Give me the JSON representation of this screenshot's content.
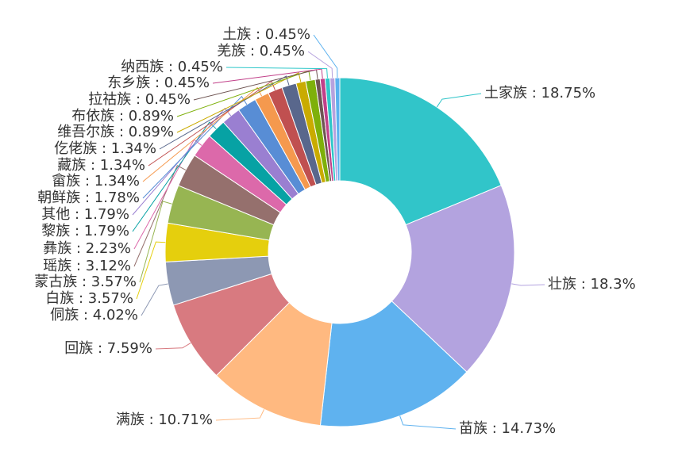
{
  "chart_data": {
    "type": "pie",
    "donut": true,
    "title": "",
    "label_separator": " : ",
    "slices": [
      {
        "name": "土家族",
        "value": 18.75,
        "color": "#31c5c9"
      },
      {
        "name": "壮族",
        "value": 18.3,
        "color": "#b3a3df"
      },
      {
        "name": "苗族",
        "value": 14.73,
        "color": "#5fb2ef"
      },
      {
        "name": "满族",
        "value": 10.71,
        "color": "#ffb980"
      },
      {
        "name": "回族",
        "value": 7.59,
        "color": "#d87a80"
      },
      {
        "name": "侗族",
        "value": 4.02,
        "color": "#8d98b3"
      },
      {
        "name": "白族",
        "value": 3.57,
        "color": "#e5cf0d"
      },
      {
        "name": "蒙古族",
        "value": 3.57,
        "color": "#97b552"
      },
      {
        "name": "瑶族",
        "value": 3.12,
        "color": "#95706d"
      },
      {
        "name": "彝族",
        "value": 2.23,
        "color": "#dc69aa"
      },
      {
        "name": "黎族",
        "value": 1.79,
        "color": "#07a2a4"
      },
      {
        "name": "其他",
        "value": 1.79,
        "color": "#9a7fd1"
      },
      {
        "name": "朝鲜族",
        "value": 1.78,
        "color": "#588dd5"
      },
      {
        "name": "畲族",
        "value": 1.34,
        "color": "#f5994e"
      },
      {
        "name": "藏族",
        "value": 1.34,
        "color": "#c05050"
      },
      {
        "name": "仡佬族",
        "value": 1.34,
        "color": "#59678c"
      },
      {
        "name": "维吾尔族",
        "value": 0.89,
        "color": "#c9ab00"
      },
      {
        "name": "布依族",
        "value": 0.89,
        "color": "#7eb00a"
      },
      {
        "name": "拉祜族",
        "value": 0.45,
        "color": "#6f5553"
      },
      {
        "name": "东乡族",
        "value": 0.45,
        "color": "#c14089"
      },
      {
        "name": "纳西族",
        "value": 0.45,
        "color": "#2ec7c9"
      },
      {
        "name": "羌族",
        "value": 0.45,
        "color": "#b6a2de"
      },
      {
        "name": "土族",
        "value": 0.45,
        "color": "#5ab1ef"
      }
    ]
  }
}
